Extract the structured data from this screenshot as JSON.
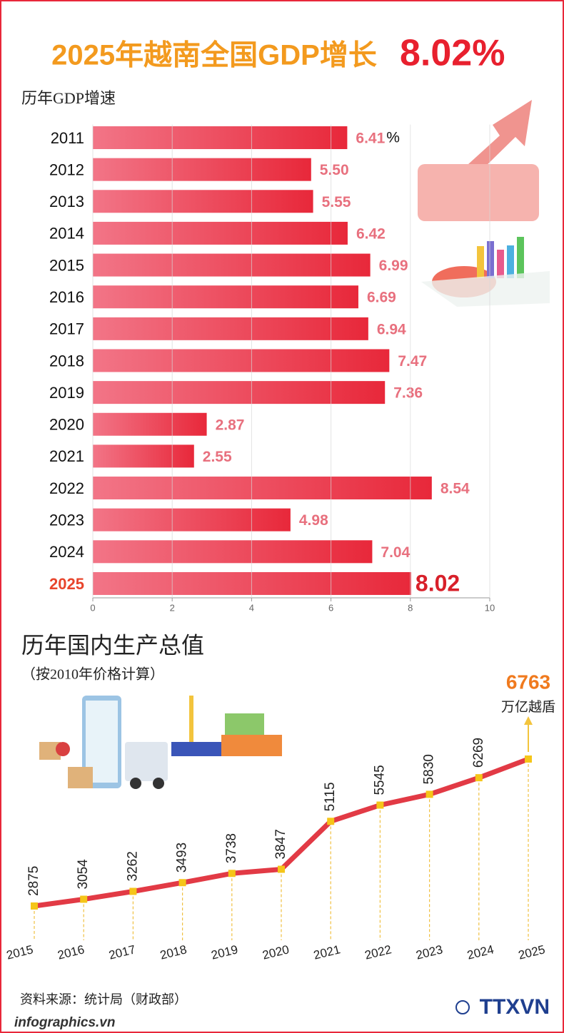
{
  "header": {
    "title": "2025年越南全国GDP增长",
    "highlight": "8.02%"
  },
  "chart_data": [
    {
      "type": "bar",
      "orientation": "horizontal",
      "title": "历年GDP增速",
      "categories": [
        "2011",
        "2012",
        "2013",
        "2014",
        "2015",
        "2016",
        "2017",
        "2018",
        "2019",
        "2020",
        "2021",
        "2022",
        "2023",
        "2024",
        "2025"
      ],
      "values": [
        6.41,
        5.5,
        5.55,
        6.42,
        6.99,
        6.69,
        6.94,
        7.47,
        7.36,
        2.87,
        2.55,
        8.54,
        4.98,
        7.04,
        8.02
      ],
      "value_labels": [
        "6.41",
        "5.50",
        "5.55",
        "6.42",
        "6.99",
        "6.69",
        "6.94",
        "7.47",
        "7.36",
        "2.87",
        "2.55",
        "8.54",
        "4.98",
        "7.04",
        "8.02"
      ],
      "unit": "%",
      "color": "#e8283a",
      "xlim": [
        0,
        10
      ],
      "xticks": [
        0,
        2,
        4,
        6,
        8,
        10
      ],
      "grid": true
    },
    {
      "type": "line",
      "title": "历年国内生产总值",
      "subtitle": "（按2010年价格计算）",
      "categories": [
        "2015",
        "2016",
        "2017",
        "2018",
        "2019",
        "2020",
        "2021",
        "2022",
        "2023",
        "2024",
        "2025"
      ],
      "values": [
        2875,
        3054,
        3262,
        3493,
        3738,
        3847,
        5115,
        5545,
        5830,
        6269,
        6763
      ],
      "unit": "万亿越盾",
      "color": "#e23a45",
      "marker_color": "#f5c518"
    }
  ],
  "footer": {
    "source": "资料来源：统计局（财政部）",
    "site": "infographics.vn",
    "agency": "TTXVN"
  }
}
